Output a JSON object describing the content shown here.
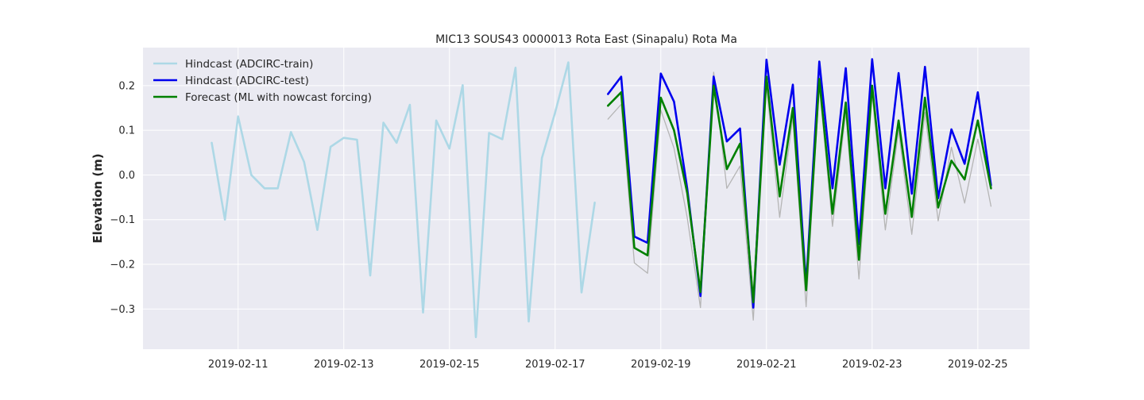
{
  "chart_data": {
    "type": "line",
    "title": "MIC13 SOUS43 0000013 Rota East (Sinapalu) Rota Ma",
    "xlabel": "",
    "ylabel": "Elevation (m)",
    "x_ticks": [
      "2019-02-11",
      "2019-02-13",
      "2019-02-15",
      "2019-02-17",
      "2019-02-19",
      "2019-02-21",
      "2019-02-23",
      "2019-02-25"
    ],
    "y_ticks": [
      "−0.3",
      "−0.2",
      "−0.1",
      "0.0",
      "0.1",
      "0.2"
    ],
    "xlim": [
      9.2,
      25.98
    ],
    "ylim": [
      -0.39,
      0.285
    ],
    "grid": true,
    "legend_position": "upper-left",
    "series": [
      {
        "name": "Hindcast (ADCIRC-train)",
        "color": "#add8e6",
        "in_legend": true,
        "x": [
          10.5,
          10.75,
          11.0,
          11.25,
          11.5,
          11.75,
          12.0,
          12.25,
          12.5,
          12.75,
          13.0,
          13.25,
          13.5,
          13.75,
          14.0,
          14.25,
          14.5,
          14.75,
          15.0,
          15.25,
          15.5,
          15.75,
          16.0,
          16.25,
          16.5,
          16.75,
          17.0,
          17.25,
          17.5,
          17.75
        ],
        "values": [
          0.072,
          -0.1,
          0.131,
          0.0,
          -0.03,
          -0.03,
          0.096,
          0.029,
          -0.123,
          0.063,
          0.083,
          0.079,
          -0.225,
          0.117,
          0.072,
          0.157,
          -0.308,
          0.122,
          0.059,
          0.201,
          -0.363,
          0.094,
          0.08,
          0.24,
          -0.328,
          0.038,
          0.14,
          0.252,
          -0.263,
          -0.062
        ]
      },
      {
        "name": "Hindcast (ADCIRC-test)",
        "color": "#0000ee",
        "in_legend": true,
        "x": [
          18.0,
          18.25,
          18.5,
          18.75,
          19.0,
          19.25,
          19.5,
          19.75,
          20.0,
          20.25,
          20.5,
          20.75,
          21.0,
          21.25,
          21.5,
          21.75,
          22.0,
          22.25,
          22.5,
          22.75,
          23.0,
          23.25,
          23.5,
          23.75,
          24.0,
          24.25,
          24.5,
          24.75,
          25.0,
          25.25
        ],
        "values": [
          0.181,
          0.22,
          -0.138,
          -0.152,
          0.227,
          0.164,
          -0.03,
          -0.271,
          0.22,
          0.075,
          0.104,
          -0.297,
          0.258,
          0.023,
          0.202,
          -0.247,
          0.254,
          -0.03,
          0.239,
          -0.155,
          0.259,
          -0.03,
          0.228,
          -0.042,
          0.242,
          -0.052,
          0.102,
          0.025,
          0.185,
          -0.023
        ]
      },
      {
        "name": "Forecast (ML with nowcast forcing)",
        "color": "#008000",
        "in_legend": true,
        "x": [
          18.0,
          18.25,
          18.5,
          18.75,
          19.0,
          19.25,
          19.5,
          19.75,
          20.0,
          20.25,
          20.5,
          20.75,
          21.0,
          21.25,
          21.5,
          21.75,
          22.0,
          22.25,
          22.5,
          22.75,
          23.0,
          23.25,
          23.5,
          23.75,
          24.0,
          24.25,
          24.5,
          24.75,
          25.0,
          25.25
        ],
        "values": [
          0.155,
          0.185,
          -0.163,
          -0.18,
          0.173,
          0.1,
          -0.04,
          -0.262,
          0.2,
          0.013,
          0.07,
          -0.285,
          0.22,
          -0.048,
          0.15,
          -0.258,
          0.215,
          -0.087,
          0.162,
          -0.19,
          0.2,
          -0.087,
          0.122,
          -0.094,
          0.173,
          -0.073,
          0.032,
          -0.01,
          0.122,
          -0.03
        ]
      },
      {
        "name": "",
        "color": "#b5b5b5",
        "in_legend": false,
        "x": [
          18.0,
          18.25,
          18.5,
          18.75,
          19.0,
          19.25,
          19.5,
          19.75,
          20.0,
          20.25,
          20.5,
          20.75,
          21.0,
          21.25,
          21.5,
          21.75,
          22.0,
          22.25,
          22.5,
          22.75,
          23.0,
          23.25,
          23.5,
          23.75,
          24.0,
          24.25,
          24.5,
          24.75,
          25.0,
          25.25
        ],
        "values": [
          0.125,
          0.158,
          -0.197,
          -0.22,
          0.145,
          0.06,
          -0.095,
          -0.297,
          0.23,
          -0.03,
          0.02,
          -0.325,
          0.2,
          -0.095,
          0.13,
          -0.295,
          0.2,
          -0.115,
          0.14,
          -0.233,
          0.18,
          -0.123,
          0.1,
          -0.133,
          0.14,
          -0.103,
          0.062,
          -0.063,
          0.08,
          -0.07
        ]
      }
    ]
  }
}
